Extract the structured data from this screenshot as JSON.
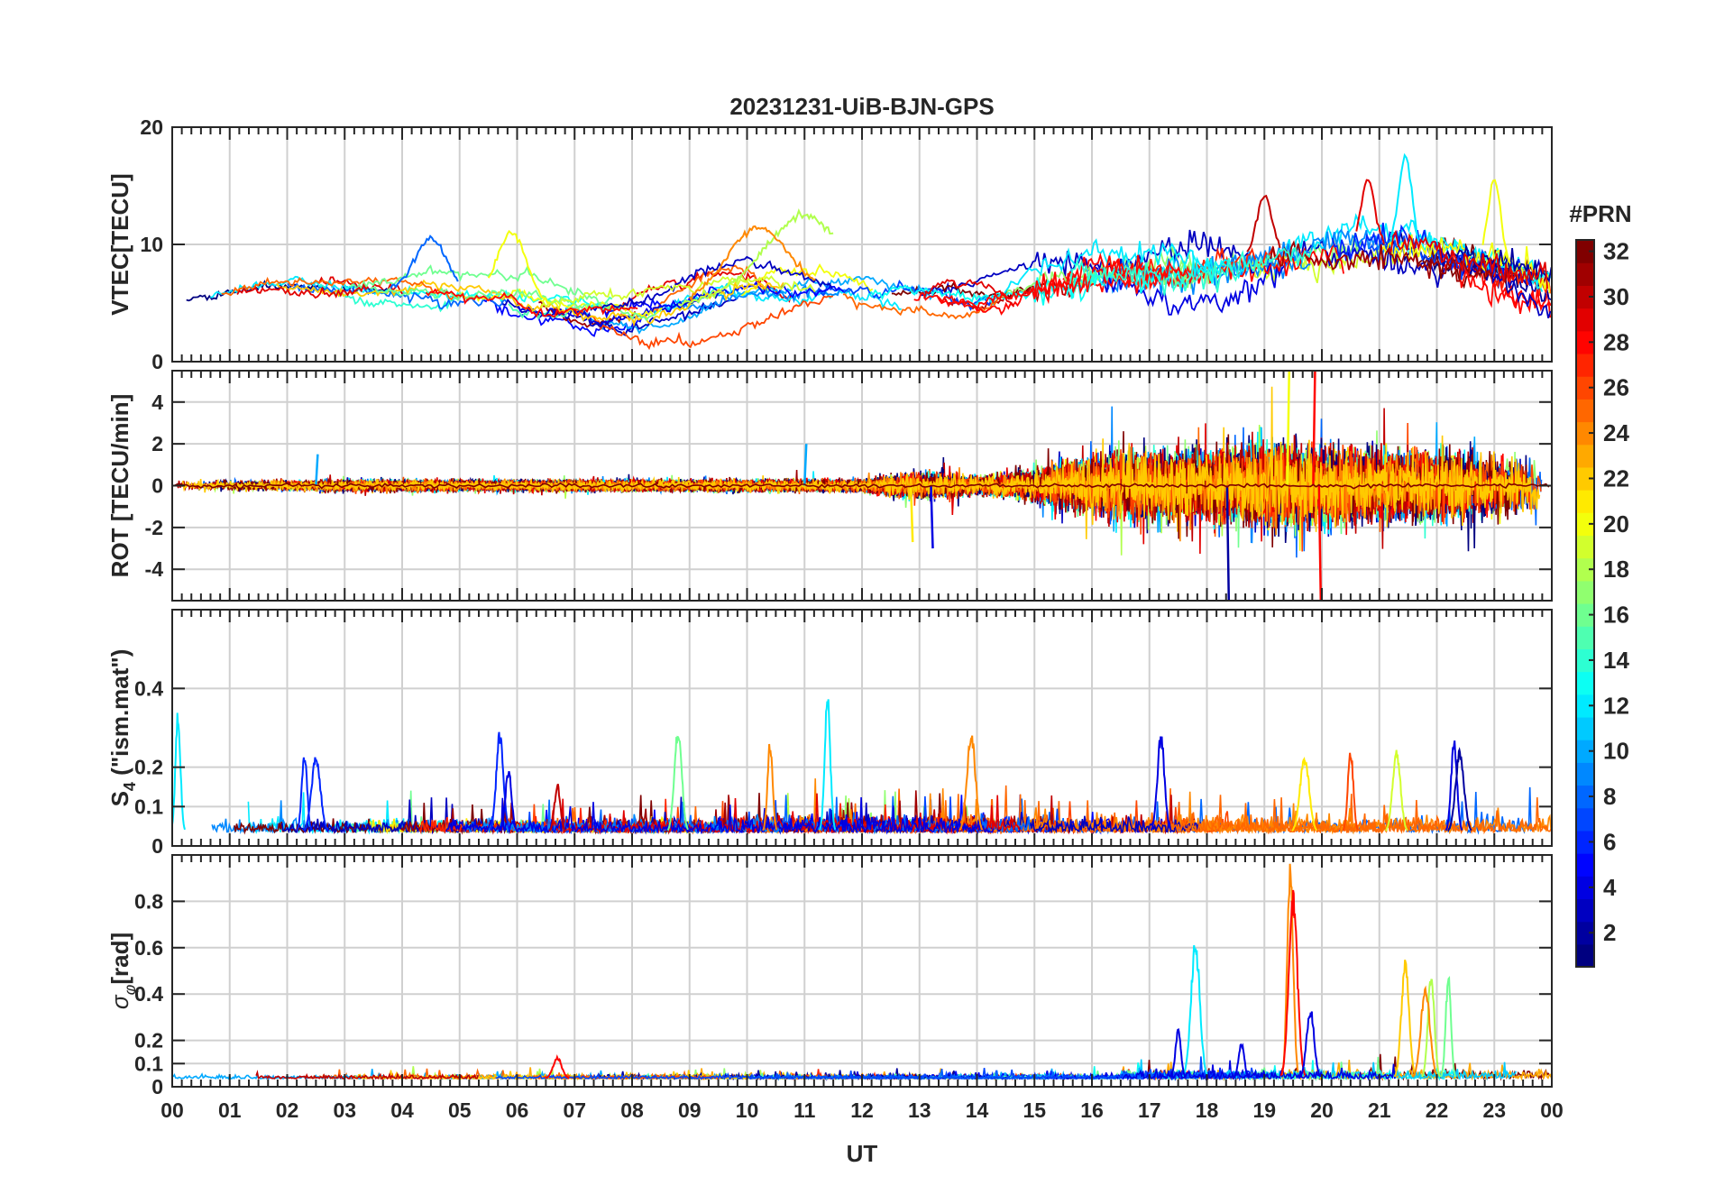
{
  "chart_data": {
    "type": "line",
    "title": "20231231-UiB-BJN-GPS",
    "xlabel": "UT",
    "x_ticks": [
      "00",
      "01",
      "02",
      "03",
      "04",
      "05",
      "06",
      "07",
      "08",
      "09",
      "10",
      "11",
      "12",
      "13",
      "14",
      "15",
      "16",
      "17",
      "18",
      "19",
      "20",
      "21",
      "22",
      "23",
      "00"
    ],
    "xlim": [
      0,
      24
    ],
    "grid": true,
    "colorbar": {
      "label": "#PRN",
      "range": [
        1,
        32
      ],
      "ticks": [
        "2",
        "4",
        "6",
        "8",
        "10",
        "12",
        "14",
        "16",
        "18",
        "20",
        "22",
        "24",
        "26",
        "28",
        "30",
        "32"
      ],
      "colormap": "jet"
    },
    "panels": [
      {
        "id": "vtec",
        "ylabel": "VTEC[TECU]",
        "ylim": [
          0,
          20
        ],
        "y_ticks": [
          "0",
          "10",
          "20"
        ],
        "description_series": "one line per PRN satellite pass",
        "envelope_x": [
          0,
          2,
          4,
          6,
          8,
          10,
          12,
          14,
          16,
          18,
          20,
          21,
          22,
          24
        ],
        "envelope_mean": [
          5,
          6.5,
          6,
          5,
          4,
          6,
          6,
          5,
          7.5,
          8,
          9.5,
          10,
          9,
          7
        ],
        "envelope_spread": [
          1.8,
          2,
          2.2,
          3,
          2.5,
          3,
          3,
          2.5,
          2.5,
          2.5,
          2.5,
          3,
          2.5,
          2
        ],
        "events": [
          {
            "prn": 18,
            "t0": 8.8,
            "t1": 11.5,
            "peak_t": 11.0,
            "peak": 12.5
          },
          {
            "prn": 24,
            "t0": 9.0,
            "t1": 11.2,
            "peak_t": 10.2,
            "peak": 11.5
          },
          {
            "prn": 20,
            "t0": 5.5,
            "t1": 6.6,
            "peak_t": 5.9,
            "peak": 11.0
          },
          {
            "prn": 8,
            "t0": 3.8,
            "t1": 5.0,
            "peak_t": 4.5,
            "peak": 10.5
          },
          {
            "prn": 12,
            "t0": 21.2,
            "t1": 21.7,
            "peak_t": 21.45,
            "peak": 17.5
          },
          {
            "prn": 20,
            "t0": 22.8,
            "t1": 23.3,
            "peak_t": 23.0,
            "peak": 15.5
          },
          {
            "prn": 29,
            "t0": 20.6,
            "t1": 21.1,
            "peak_t": 20.8,
            "peak": 15.5
          },
          {
            "prn": 30,
            "t0": 18.7,
            "t1": 19.3,
            "peak_t": 19.0,
            "peak": 14.0
          }
        ]
      },
      {
        "id": "rot",
        "ylabel": "ROT [TECU/min]",
        "ylim": [
          -5.5,
          5.5
        ],
        "y_ticks": [
          "-4",
          "-2",
          "0",
          "2",
          "4"
        ],
        "amplitude_x": [
          0,
          12,
          12.5,
          13,
          14,
          15,
          16,
          17,
          18,
          19,
          20,
          21,
          22,
          23,
          24
        ],
        "amplitude": [
          0.35,
          0.4,
          0.7,
          0.9,
          0.6,
          1.0,
          2.0,
          2.3,
          2.3,
          2.8,
          2.5,
          2.3,
          2.2,
          2.0,
          1.8
        ],
        "events": [
          {
            "prn": 4,
            "t": 13.2,
            "v": -3.0
          },
          {
            "prn": 21,
            "t": 12.85,
            "v": -2.7
          },
          {
            "prn": 20,
            "t": 19.4,
            "v": 5.5
          },
          {
            "prn": 28,
            "t": 19.85,
            "v": 5.5
          },
          {
            "prn": 2,
            "t": 18.35,
            "v": -5.5
          },
          {
            "prn": 28,
            "t": 19.95,
            "v": -5.5
          },
          {
            "prn": 10,
            "t": 11.0,
            "v": 2.0
          },
          {
            "prn": 10,
            "t": 2.5,
            "v": 1.5
          }
        ]
      },
      {
        "id": "s4",
        "ylabel_main": "S",
        "ylabel_sub": "4",
        "ylabel_rest": " (\"ism.mat\")",
        "ylim": [
          0,
          0.6
        ],
        "y_ticks": [
          "0",
          "0.1",
          "0.2",
          "0.4"
        ],
        "tick_values": [
          0,
          0.1,
          0.2,
          0.4
        ],
        "baseline": 0.035,
        "noise": 0.04,
        "events": [
          {
            "prn": 12,
            "t": 0.1,
            "v": 0.35
          },
          {
            "prn": 6,
            "t": 2.3,
            "v": 0.24
          },
          {
            "prn": 6,
            "t": 2.5,
            "v": 0.24
          },
          {
            "prn": 6,
            "t": 5.7,
            "v": 0.3
          },
          {
            "prn": 4,
            "t": 5.85,
            "v": 0.2
          },
          {
            "prn": 16,
            "t": 8.8,
            "v": 0.31
          },
          {
            "prn": 24,
            "t": 10.4,
            "v": 0.27
          },
          {
            "prn": 12,
            "t": 11.4,
            "v": 0.39
          },
          {
            "prn": 24,
            "t": 13.9,
            "v": 0.3
          },
          {
            "prn": 4,
            "t": 17.2,
            "v": 0.29
          },
          {
            "prn": 26,
            "t": 20.5,
            "v": 0.25
          },
          {
            "prn": 4,
            "t": 22.3,
            "v": 0.28
          },
          {
            "prn": 2,
            "t": 22.4,
            "v": 0.25
          },
          {
            "prn": 30,
            "t": 6.7,
            "v": 0.16
          },
          {
            "prn": 21,
            "t": 19.7,
            "v": 0.24
          },
          {
            "prn": 19,
            "t": 21.3,
            "v": 0.25
          }
        ]
      },
      {
        "id": "sigma",
        "ylabel_main": "σ",
        "ylabel_sub": "φ",
        "ylabel_rest": "[rad]",
        "ylim": [
          0,
          1.0
        ],
        "y_ticks": [
          "0",
          "0.1",
          "0.2",
          "0.4",
          "0.6",
          "0.8"
        ],
        "tick_values": [
          0,
          0.1,
          0.2,
          0.4,
          0.6,
          0.8
        ],
        "baseline": 0.035,
        "noise": 0.02,
        "events": [
          {
            "prn": 12,
            "t": 17.8,
            "v": 0.65
          },
          {
            "prn": 24,
            "t": 19.45,
            "v": 1.0
          },
          {
            "prn": 28,
            "t": 19.5,
            "v": 0.85
          },
          {
            "prn": 4,
            "t": 19.8,
            "v": 0.35
          },
          {
            "prn": 22,
            "t": 21.45,
            "v": 0.56
          },
          {
            "prn": 18,
            "t": 21.9,
            "v": 0.5
          },
          {
            "prn": 24,
            "t": 21.8,
            "v": 0.45
          },
          {
            "prn": 16,
            "t": 22.2,
            "v": 0.5
          },
          {
            "prn": 4,
            "t": 17.5,
            "v": 0.25
          },
          {
            "prn": 4,
            "t": 18.6,
            "v": 0.2
          },
          {
            "prn": 28,
            "t": 6.7,
            "v": 0.13
          }
        ]
      }
    ]
  }
}
